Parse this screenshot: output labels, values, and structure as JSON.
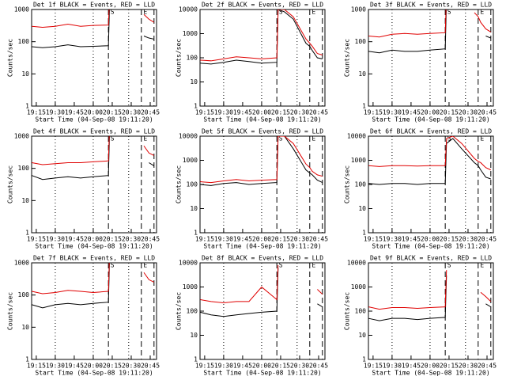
{
  "events": [
    {
      "x": 30,
      "style": "dotted"
    },
    {
      "x": 60,
      "style": "dotted"
    },
    {
      "x": 72,
      "style": "dashed",
      "label": "S"
    },
    {
      "x": 88,
      "style": "dotted"
    },
    {
      "x": 98,
      "style": "dashed",
      "label": "E"
    },
    {
      "x": 108,
      "style": "dashed"
    }
  ],
  "chart_data": [
    {
      "type": "line",
      "title": "Det 1f BLACK = Events, RED = LLD",
      "x_label": "Start Time (04-Sep-08 19:11:20)",
      "y_label": "Counts/sec",
      "log_y": true,
      "xlim": [
        11.33,
        110
      ],
      "xticks": [
        {
          "value": 15,
          "label": "19:15"
        },
        {
          "value": 30,
          "label": "19:30"
        },
        {
          "value": 45,
          "label": "19:45"
        },
        {
          "value": 60,
          "label": "20:00"
        },
        {
          "value": 75,
          "label": "20:15"
        },
        {
          "value": 90,
          "label": "20:30"
        },
        {
          "value": 105,
          "label": "20:45"
        }
      ],
      "ylim": [
        1,
        1000
      ],
      "yticks": [
        1,
        10,
        100,
        1000
      ],
      "x": [
        11.5,
        20,
        30,
        40,
        50,
        60,
        72,
        73,
        78,
        85,
        95,
        98,
        100,
        104,
        108
      ],
      "series": [
        {
          "color": "#000000",
          "values": [
            70,
            65,
            70,
            80,
            70,
            72,
            75,
            2000,
            null,
            null,
            null,
            null,
            150,
            130,
            120
          ]
        },
        {
          "color": "#e00000",
          "values": [
            300,
            280,
            300,
            350,
            300,
            320,
            330,
            3000,
            null,
            null,
            null,
            null,
            700,
            500,
            400
          ]
        }
      ]
    },
    {
      "type": "line",
      "title": "Det 2f BLACK = Events, RED = LLD",
      "x_label": "Start Time (04-Sep-08 19:11:20)",
      "y_label": "Counts/sec",
      "log_y": true,
      "xlim": [
        11.33,
        110
      ],
      "xticks": [
        {
          "value": 15,
          "label": "19:15"
        },
        {
          "value": 30,
          "label": "19:30"
        },
        {
          "value": 45,
          "label": "19:45"
        },
        {
          "value": 60,
          "label": "20:00"
        },
        {
          "value": 75,
          "label": "20:15"
        },
        {
          "value": 90,
          "label": "20:30"
        },
        {
          "value": 105,
          "label": "20:45"
        }
      ],
      "ylim": [
        1,
        10000
      ],
      "yticks": [
        1,
        10,
        100,
        1000,
        10000
      ],
      "x": [
        11.5,
        20,
        30,
        40,
        50,
        60,
        72,
        73,
        78,
        85,
        95,
        98,
        100,
        104,
        108
      ],
      "series": [
        {
          "color": "#000000",
          "values": [
            60,
            55,
            65,
            80,
            70,
            60,
            65,
            10000,
            8000,
            4000,
            400,
            300,
            200,
            100,
            90
          ]
        },
        {
          "color": "#e00000",
          "values": [
            80,
            75,
            90,
            110,
            100,
            90,
            100,
            10000,
            10000,
            5000,
            600,
            400,
            300,
            150,
            130
          ]
        }
      ]
    },
    {
      "type": "line",
      "title": "Det 3f BLACK = Events, RED = LLD",
      "x_label": "Start Time (04-Sep-08 19:11:20)",
      "y_label": "Counts/sec",
      "log_y": true,
      "xlim": [
        11.33,
        110
      ],
      "xticks": [
        {
          "value": 15,
          "label": "19:15"
        },
        {
          "value": 30,
          "label": "19:30"
        },
        {
          "value": 45,
          "label": "19:45"
        },
        {
          "value": 60,
          "label": "20:00"
        },
        {
          "value": 75,
          "label": "20:15"
        },
        {
          "value": 90,
          "label": "20:30"
        },
        {
          "value": 105,
          "label": "20:45"
        }
      ],
      "ylim": [
        1,
        1000
      ],
      "yticks": [
        1,
        10,
        100,
        1000
      ],
      "x": [
        11.5,
        20,
        30,
        40,
        50,
        60,
        72,
        73,
        78,
        85,
        95,
        98,
        100,
        104,
        108
      ],
      "series": [
        {
          "color": "#000000",
          "values": [
            50,
            45,
            55,
            50,
            50,
            55,
            60,
            2000,
            null,
            null,
            null,
            null,
            null,
            150,
            130
          ]
        },
        {
          "color": "#e00000",
          "values": [
            150,
            140,
            170,
            180,
            170,
            180,
            190,
            3000,
            null,
            null,
            800,
            600,
            400,
            250,
            200
          ]
        }
      ]
    },
    {
      "type": "line",
      "title": "Det 4f BLACK = Events, RED = LLD",
      "x_label": "Start Time (04-Sep-08 19:11:20)",
      "y_label": "Counts/sec",
      "log_y": true,
      "xlim": [
        11.33,
        110
      ],
      "xticks": [
        {
          "value": 15,
          "label": "19:15"
        },
        {
          "value": 30,
          "label": "19:30"
        },
        {
          "value": 45,
          "label": "19:45"
        },
        {
          "value": 60,
          "label": "20:00"
        },
        {
          "value": 75,
          "label": "20:15"
        },
        {
          "value": 90,
          "label": "20:30"
        },
        {
          "value": 105,
          "label": "20:45"
        }
      ],
      "ylim": [
        1,
        1000
      ],
      "yticks": [
        1,
        10,
        100,
        1000
      ],
      "x": [
        11.5,
        20,
        30,
        40,
        50,
        60,
        72,
        73,
        78,
        85,
        95,
        98,
        100,
        104,
        108
      ],
      "series": [
        {
          "color": "#000000",
          "values": [
            60,
            45,
            50,
            55,
            50,
            55,
            60,
            2000,
            null,
            null,
            null,
            null,
            null,
            150,
            120
          ]
        },
        {
          "color": "#e00000",
          "values": [
            150,
            130,
            140,
            150,
            150,
            160,
            170,
            3000,
            null,
            null,
            null,
            null,
            500,
            300,
            250
          ]
        }
      ]
    },
    {
      "type": "line",
      "title": "Det 5f BLACK = Events, RED = LLD",
      "x_label": "Start Time (04-Sep-08 19:11:20)",
      "y_label": "Counts/sec",
      "log_y": true,
      "xlim": [
        11.33,
        110
      ],
      "xticks": [
        {
          "value": 15,
          "label": "19:15"
        },
        {
          "value": 30,
          "label": "19:30"
        },
        {
          "value": 45,
          "label": "19:45"
        },
        {
          "value": 60,
          "label": "20:00"
        },
        {
          "value": 75,
          "label": "20:15"
        },
        {
          "value": 90,
          "label": "20:30"
        },
        {
          "value": 105,
          "label": "20:45"
        }
      ],
      "ylim": [
        1,
        10000
      ],
      "yticks": [
        1,
        10,
        100,
        1000,
        10000
      ],
      "x": [
        11.5,
        20,
        30,
        40,
        50,
        60,
        72,
        73,
        78,
        85,
        95,
        98,
        100,
        104,
        108
      ],
      "series": [
        {
          "color": "#000000",
          "values": [
            100,
            90,
            110,
            120,
            100,
            110,
            120,
            10000,
            10000,
            3000,
            400,
            300,
            250,
            150,
            120
          ]
        },
        {
          "color": "#e00000",
          "values": [
            130,
            120,
            140,
            160,
            140,
            150,
            160,
            10000,
            10000,
            5000,
            700,
            500,
            350,
            250,
            220
          ]
        }
      ]
    },
    {
      "type": "line",
      "title": "Det 6f BLACK = Events, RED = LLD",
      "x_label": "Start Time (04-Sep-08 19:11:20)",
      "y_label": "Counts/sec",
      "log_y": true,
      "xlim": [
        11.33,
        110
      ],
      "xticks": [
        {
          "value": 15,
          "label": "19:15"
        },
        {
          "value": 30,
          "label": "19:30"
        },
        {
          "value": 45,
          "label": "19:45"
        },
        {
          "value": 60,
          "label": "20:00"
        },
        {
          "value": 75,
          "label": "20:15"
        },
        {
          "value": 90,
          "label": "20:30"
        },
        {
          "value": 105,
          "label": "20:45"
        }
      ],
      "ylim": [
        1,
        10000
      ],
      "yticks": [
        1,
        10,
        100,
        1000,
        10000
      ],
      "x": [
        11.5,
        20,
        30,
        40,
        50,
        60,
        72,
        73,
        78,
        85,
        95,
        98,
        100,
        104,
        108
      ],
      "series": [
        {
          "color": "#000000",
          "values": [
            110,
            100,
            110,
            110,
            100,
            110,
            110,
            5000,
            8000,
            3000,
            800,
            600,
            400,
            200,
            170
          ]
        },
        {
          "color": "#e00000",
          "values": [
            600,
            550,
            600,
            600,
            580,
            600,
            600,
            8000,
            10000,
            5000,
            1200,
            900,
            800,
            500,
            400
          ]
        }
      ]
    },
    {
      "type": "line",
      "title": "Det 7f BLACK = Events, RED = LLD",
      "x_label": "Start Time (04-Sep-08 19:11:20)",
      "y_label": "Counts/sec",
      "log_y": true,
      "xlim": [
        11.33,
        110
      ],
      "xticks": [
        {
          "value": 15,
          "label": "19:15"
        },
        {
          "value": 30,
          "label": "19:30"
        },
        {
          "value": 45,
          "label": "19:45"
        },
        {
          "value": 60,
          "label": "20:00"
        },
        {
          "value": 75,
          "label": "20:15"
        },
        {
          "value": 90,
          "label": "20:30"
        },
        {
          "value": 105,
          "label": "20:45"
        }
      ],
      "ylim": [
        1,
        1000
      ],
      "yticks": [
        1,
        10,
        100,
        1000
      ],
      "x": [
        11.5,
        20,
        30,
        40,
        50,
        60,
        72,
        73,
        78,
        85,
        95,
        98,
        100,
        104,
        108
      ],
      "series": [
        {
          "color": "#000000",
          "values": [
            50,
            40,
            50,
            55,
            50,
            55,
            60,
            2000,
            null,
            null,
            null,
            null,
            null,
            null,
            null
          ]
        },
        {
          "color": "#e00000",
          "values": [
            130,
            110,
            120,
            140,
            130,
            120,
            130,
            3000,
            null,
            null,
            null,
            null,
            500,
            300,
            250
          ]
        }
      ]
    },
    {
      "type": "line",
      "title": "Det 8f BLACK = Events, RED = LLD",
      "x_label": "Start Time (04-Sep-08 19:11:20)",
      "y_label": "Counts/sec",
      "log_y": true,
      "xlim": [
        11.33,
        110
      ],
      "xticks": [
        {
          "value": 15,
          "label": "19:15"
        },
        {
          "value": 30,
          "label": "19:30"
        },
        {
          "value": 45,
          "label": "19:45"
        },
        {
          "value": 60,
          "label": "20:00"
        },
        {
          "value": 75,
          "label": "20:15"
        },
        {
          "value": 90,
          "label": "20:30"
        },
        {
          "value": 105,
          "label": "20:45"
        }
      ],
      "ylim": [
        1,
        10000
      ],
      "yticks": [
        1,
        10,
        100,
        1000,
        10000
      ],
      "x": [
        11.5,
        20,
        30,
        40,
        50,
        60,
        72,
        73,
        78,
        85,
        95,
        98,
        100,
        104,
        108
      ],
      "series": [
        {
          "color": "#000000",
          "values": [
            90,
            70,
            60,
            70,
            80,
            90,
            100,
            6000,
            null,
            null,
            null,
            null,
            null,
            200,
            150
          ]
        },
        {
          "color": "#e00000",
          "values": [
            300,
            250,
            220,
            250,
            250,
            1000,
            300,
            8000,
            null,
            null,
            null,
            null,
            null,
            800,
            500
          ]
        }
      ]
    },
    {
      "type": "line",
      "title": "Det 9f BLACK = Events, RED = LLD",
      "x_label": "Start Time (04-Sep-08 19:11:20)",
      "y_label": "Counts/sec",
      "log_y": true,
      "xlim": [
        11.33,
        110
      ],
      "xticks": [
        {
          "value": 15,
          "label": "19:15"
        },
        {
          "value": 30,
          "label": "19:30"
        },
        {
          "value": 45,
          "label": "19:45"
        },
        {
          "value": 60,
          "label": "20:00"
        },
        {
          "value": 75,
          "label": "20:15"
        },
        {
          "value": 90,
          "label": "20:30"
        },
        {
          "value": 105,
          "label": "20:45"
        }
      ],
      "ylim": [
        1,
        10000
      ],
      "yticks": [
        1,
        10,
        100,
        1000,
        10000
      ],
      "x": [
        11.5,
        20,
        30,
        40,
        50,
        60,
        72,
        73,
        78,
        85,
        95,
        98,
        100,
        104,
        108
      ],
      "series": [
        {
          "color": "#000000",
          "values": [
            50,
            40,
            50,
            50,
            45,
            50,
            55,
            3000,
            null,
            null,
            null,
            null,
            null,
            200,
            150
          ]
        },
        {
          "color": "#e00000",
          "values": [
            150,
            120,
            140,
            140,
            130,
            140,
            150,
            5000,
            null,
            null,
            null,
            null,
            600,
            400,
            250
          ]
        }
      ]
    }
  ]
}
